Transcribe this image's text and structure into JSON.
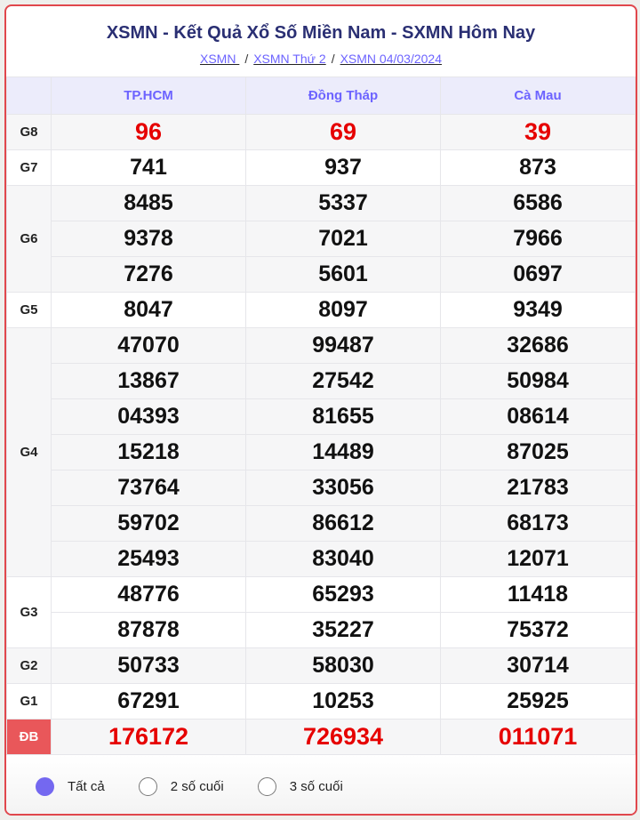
{
  "header": {
    "title": "XSMN - Kết Quả Xổ Số Miền Nam - SXMN Hôm Nay",
    "breadcrumbs": [
      "XSMN ",
      "XSMN Thứ 2",
      "XSMN 04/03/2024"
    ],
    "separator": "/"
  },
  "provinces": [
    "TP.HCM",
    "Đồng Tháp",
    "Cà Mau"
  ],
  "prizes": [
    {
      "label": "G8",
      "red": true,
      "rows": [
        [
          "96",
          "69",
          "39"
        ]
      ]
    },
    {
      "label": "G7",
      "rows": [
        [
          "741",
          "937",
          "873"
        ]
      ]
    },
    {
      "label": "G6",
      "rows": [
        [
          "8485",
          "5337",
          "6586"
        ],
        [
          "9378",
          "7021",
          "7966"
        ],
        [
          "7276",
          "5601",
          "0697"
        ]
      ]
    },
    {
      "label": "G5",
      "rows": [
        [
          "8047",
          "8097",
          "9349"
        ]
      ]
    },
    {
      "label": "G4",
      "rows": [
        [
          "47070",
          "99487",
          "32686"
        ],
        [
          "13867",
          "27542",
          "50984"
        ],
        [
          "04393",
          "81655",
          "08614"
        ],
        [
          "15218",
          "14489",
          "87025"
        ],
        [
          "73764",
          "33056",
          "21783"
        ],
        [
          "59702",
          "86612",
          "68173"
        ],
        [
          "25493",
          "83040",
          "12071"
        ]
      ]
    },
    {
      "label": "G3",
      "rows": [
        [
          "48776",
          "65293",
          "11418"
        ],
        [
          "87878",
          "35227",
          "75372"
        ]
      ]
    },
    {
      "label": "G2",
      "rows": [
        [
          "50733",
          "58030",
          "30714"
        ]
      ]
    },
    {
      "label": "G1",
      "rows": [
        [
          "67291",
          "10253",
          "25925"
        ]
      ]
    },
    {
      "label": "ĐB",
      "red": true,
      "special": true,
      "rows": [
        [
          "176172",
          "726934",
          "011071"
        ]
      ]
    }
  ],
  "filters": [
    {
      "label": "Tất cả",
      "selected": true
    },
    {
      "label": "2 số cuối",
      "selected": false
    },
    {
      "label": "3 số cuối",
      "selected": false
    }
  ],
  "colors": {
    "accent": "#6c63ff",
    "red": "#e60000",
    "border": "#e0474c",
    "title": "#2a2f73"
  }
}
